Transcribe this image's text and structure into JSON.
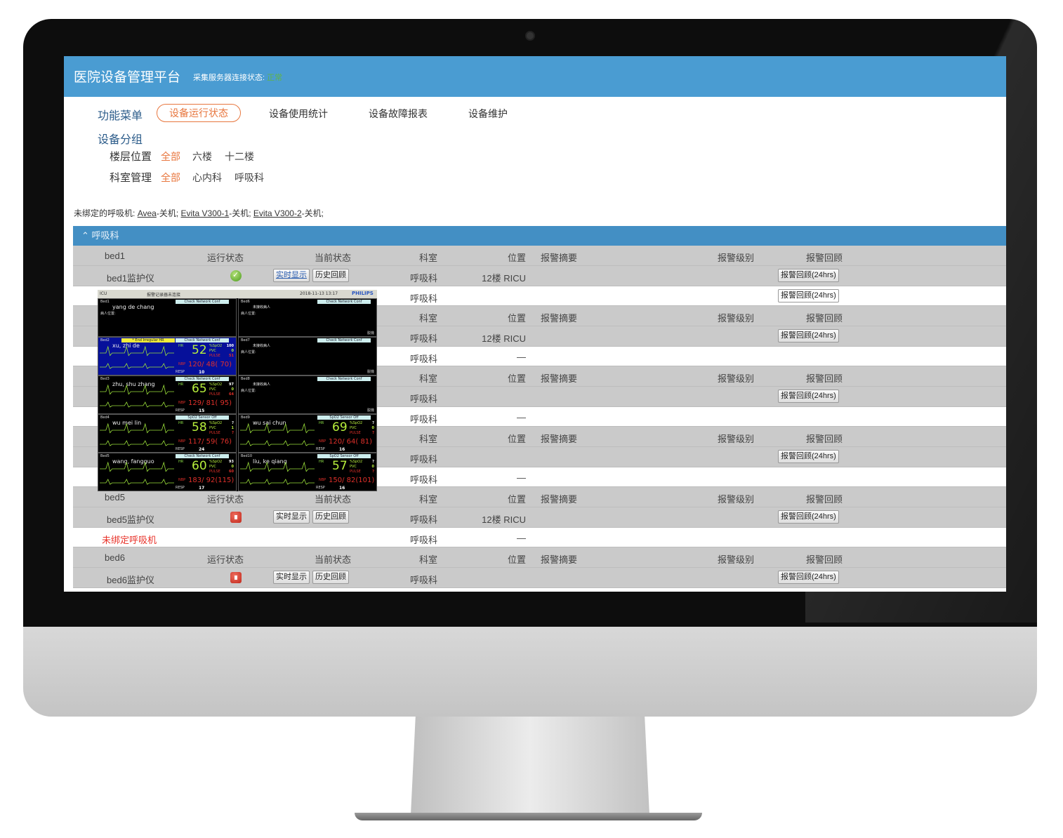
{
  "header": {
    "title": "医院设备管理平台",
    "conn_label": "采集服务器连接状态:",
    "conn_value": "正常",
    "conn_color": "#5fb34a",
    "bg_color": "#4a9cd2"
  },
  "nav": {
    "label": "功能菜单",
    "items": [
      {
        "label": "设备运行状态",
        "active": true
      },
      {
        "label": "设备使用统计"
      },
      {
        "label": "设备故障报表"
      },
      {
        "label": "设备维护"
      }
    ]
  },
  "group": {
    "label": "设备分组",
    "floor": {
      "label": "楼层位置",
      "items": [
        "全部",
        "六楼",
        "十二楼"
      ]
    },
    "dept": {
      "label": "科室管理",
      "items": [
        "全部",
        "心内科",
        "呼吸科"
      ]
    }
  },
  "unbound": {
    "prefix": "未绑定的呼吸机:",
    "items": [
      {
        "name": "Avea",
        "state": "-关机;"
      },
      {
        "name": "Evita V300-1",
        "state": "-关机;"
      },
      {
        "name": "Evita V300-2",
        "state": "-关机;"
      }
    ]
  },
  "section": {
    "title": "呼吸科",
    "icon": "chevron-up-icon"
  },
  "columns": {
    "run": "运行状态",
    "cur": "当前状态",
    "dept": "科室",
    "loc": "位置",
    "summary": "报警摘要",
    "level": "报警级别",
    "review": "报警回顾"
  },
  "buttons": {
    "realtime": "实时显示",
    "history": "历史回顾",
    "review24": "报警回顾(24hrs)"
  },
  "beds": [
    {
      "name": "bed1",
      "monitor": "bed1监护仪",
      "status": "ok",
      "dept": "呼吸科",
      "loc": "12楼 RICU",
      "vent": "",
      "vent_dept": "呼吸科",
      "vent_loc": "",
      "vent_review": true
    },
    {
      "name": "",
      "monitor": "",
      "status": "",
      "dept": "呼吸科",
      "loc": "12楼 RICU",
      "vent": "",
      "vent_dept": "呼吸科",
      "vent_loc": "—",
      "vent_review": false
    },
    {
      "name": "",
      "monitor": "",
      "status": "",
      "dept": "呼吸科",
      "loc": "",
      "vent": "",
      "vent_dept": "呼吸科",
      "vent_loc": "—",
      "vent_review": false
    },
    {
      "name": "",
      "monitor": "",
      "status": "",
      "dept": "呼吸科",
      "loc": "",
      "vent": "",
      "vent_dept": "呼吸科",
      "vent_loc": "—",
      "vent_review": false
    },
    {
      "name": "bed5",
      "monitor": "bed5监护仪",
      "status": "off",
      "dept": "呼吸科",
      "loc": "12楼 RICU",
      "vent": "未绑定呼吸机",
      "vent_dept": "呼吸科",
      "vent_loc": "—",
      "vent_review": false
    },
    {
      "name": "bed6",
      "monitor": "bed6监护仪",
      "status": "off",
      "dept": "呼吸科",
      "loc": "",
      "vent": null
    }
  ],
  "monitor_screen": {
    "unit": "ICU",
    "recorder": "报警记录器未连接",
    "datetime": "2018-11-13 13:17",
    "brand": "PHILIPS",
    "labels": {
      "hr": "HR",
      "spo2": "%SpO2",
      "pvc": "PVC",
      "pulse": "PULSE",
      "nbp": "NBP",
      "resp": "RESP",
      "loc": "病人位置:",
      "offline": "脱機"
    },
    "cells": [
      {
        "bed": "Bed1",
        "patient": "yang de chang",
        "banner": "Check Network Conf",
        "empty": true
      },
      {
        "bed": "Bed6",
        "patient": "未接收病人",
        "banner": "Check Network Conf",
        "empty": true
      },
      {
        "bed": "Bed2",
        "patient": "xu, zhi de",
        "banner": "Check Network Conf",
        "alarm": "* End Irregular HR",
        "highlight": true,
        "hr": "52",
        "spo2": "100",
        "pvc": "0",
        "pulse": "51",
        "nbp": "120/ 48( 70)",
        "resp": "10"
      },
      {
        "bed": "Bed7",
        "patient": "未接收病人",
        "banner": "Check Network Conf",
        "empty": true
      },
      {
        "bed": "Bed3",
        "patient": "zhu, shu zhang",
        "banner": "Check Network Conf",
        "hr": "65",
        "spo2": "97",
        "pvc": "0",
        "pulse": "64",
        "nbp": "129/ 81( 95)",
        "resp": "15"
      },
      {
        "bed": "Bed8",
        "patient": "未接收病人",
        "banner": "Check Network Conf",
        "empty": true
      },
      {
        "bed": "Bed4",
        "patient": "wu mei lin",
        "banner": "SpO2  Sensor Off",
        "hr": "58",
        "spo2": "?",
        "pvc": "1",
        "pulse": "?",
        "nbp": "117/ 59( 76)",
        "resp": "24"
      },
      {
        "bed": "Bed9",
        "patient": "wu sai chun",
        "banner": "SpO2  Sensor Off",
        "hr": "69",
        "spo2": "?",
        "pvc": "0",
        "pulse": "?",
        "nbp": "120/ 64( 81)",
        "resp": "16"
      },
      {
        "bed": "Bed5",
        "patient": "wang, fangguo",
        "banner": "Check Network Conf",
        "hr": "60",
        "spo2": "93",
        "pvc": "0",
        "pulse": "60",
        "nbp": "183/ 92(115)",
        "resp": "17"
      },
      {
        "bed": "Bed10",
        "patient": "liu, ke qiang",
        "banner": "SpO2  Sensor Off",
        "hr": "57",
        "spo2": "?",
        "pvc": "0",
        "pulse": "?",
        "nbp": "150/ 82(101)",
        "resp": "16"
      }
    ]
  }
}
